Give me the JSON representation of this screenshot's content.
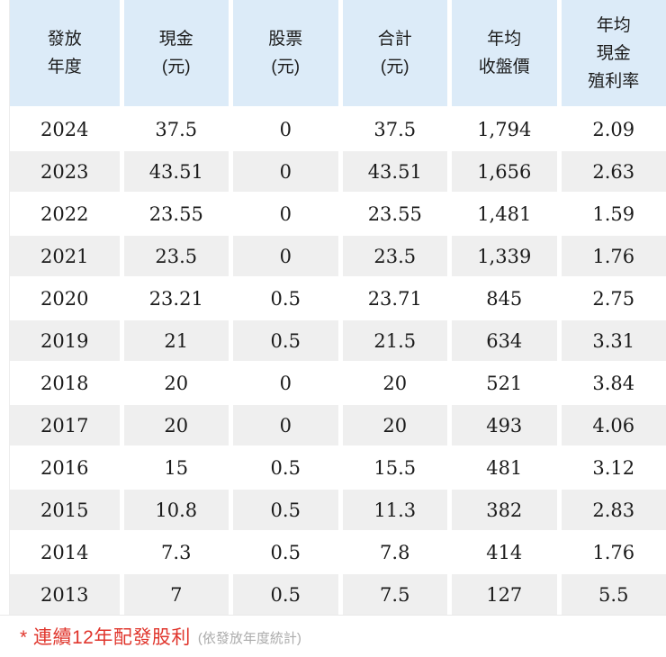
{
  "table": {
    "columns": [
      {
        "id": "year",
        "lines": [
          "發放",
          "年度"
        ]
      },
      {
        "id": "cash",
        "lines": [
          "現金",
          "(元)"
        ]
      },
      {
        "id": "stock",
        "lines": [
          "股票",
          "(元)"
        ]
      },
      {
        "id": "total",
        "lines": [
          "合計",
          "(元)"
        ]
      },
      {
        "id": "avg-close",
        "lines": [
          "年均",
          "收盤價"
        ]
      },
      {
        "id": "avg-yield",
        "lines": [
          "年均",
          "現金",
          "殖利率"
        ]
      }
    ],
    "rows": [
      {
        "year": "2024",
        "cash": "37.5",
        "stock": "0",
        "total": "37.5",
        "avg_close": "1,794",
        "avg_yield": "2.09"
      },
      {
        "year": "2023",
        "cash": "43.51",
        "stock": "0",
        "total": "43.51",
        "avg_close": "1,656",
        "avg_yield": "2.63"
      },
      {
        "year": "2022",
        "cash": "23.55",
        "stock": "0",
        "total": "23.55",
        "avg_close": "1,481",
        "avg_yield": "1.59"
      },
      {
        "year": "2021",
        "cash": "23.5",
        "stock": "0",
        "total": "23.5",
        "avg_close": "1,339",
        "avg_yield": "1.76"
      },
      {
        "year": "2020",
        "cash": "23.21",
        "stock": "0.5",
        "total": "23.71",
        "avg_close": "845",
        "avg_yield": "2.75"
      },
      {
        "year": "2019",
        "cash": "21",
        "stock": "0.5",
        "total": "21.5",
        "avg_close": "634",
        "avg_yield": "3.31"
      },
      {
        "year": "2018",
        "cash": "20",
        "stock": "0",
        "total": "20",
        "avg_close": "521",
        "avg_yield": "3.84"
      },
      {
        "year": "2017",
        "cash": "20",
        "stock": "0",
        "total": "20",
        "avg_close": "493",
        "avg_yield": "4.06"
      },
      {
        "year": "2016",
        "cash": "15",
        "stock": "0.5",
        "total": "15.5",
        "avg_close": "481",
        "avg_yield": "3.12"
      },
      {
        "year": "2015",
        "cash": "10.8",
        "stock": "0.5",
        "total": "11.3",
        "avg_close": "382",
        "avg_yield": "2.83"
      },
      {
        "year": "2014",
        "cash": "7.3",
        "stock": "0.5",
        "total": "7.8",
        "avg_close": "414",
        "avg_yield": "1.76"
      },
      {
        "year": "2013",
        "cash": "7",
        "stock": "0.5",
        "total": "7.5",
        "avg_close": "127",
        "avg_yield": "5.5"
      }
    ]
  },
  "footnote": {
    "highlight": "* 連續12年配發股利",
    "note": "(依發放年度統計)"
  },
  "colors": {
    "header_bg": "#dcebf8",
    "row_alt_bg": "#efefef",
    "body_text": "#1b1b1b",
    "highlight_red": "#e0352c",
    "note_gray": "#ababab"
  }
}
